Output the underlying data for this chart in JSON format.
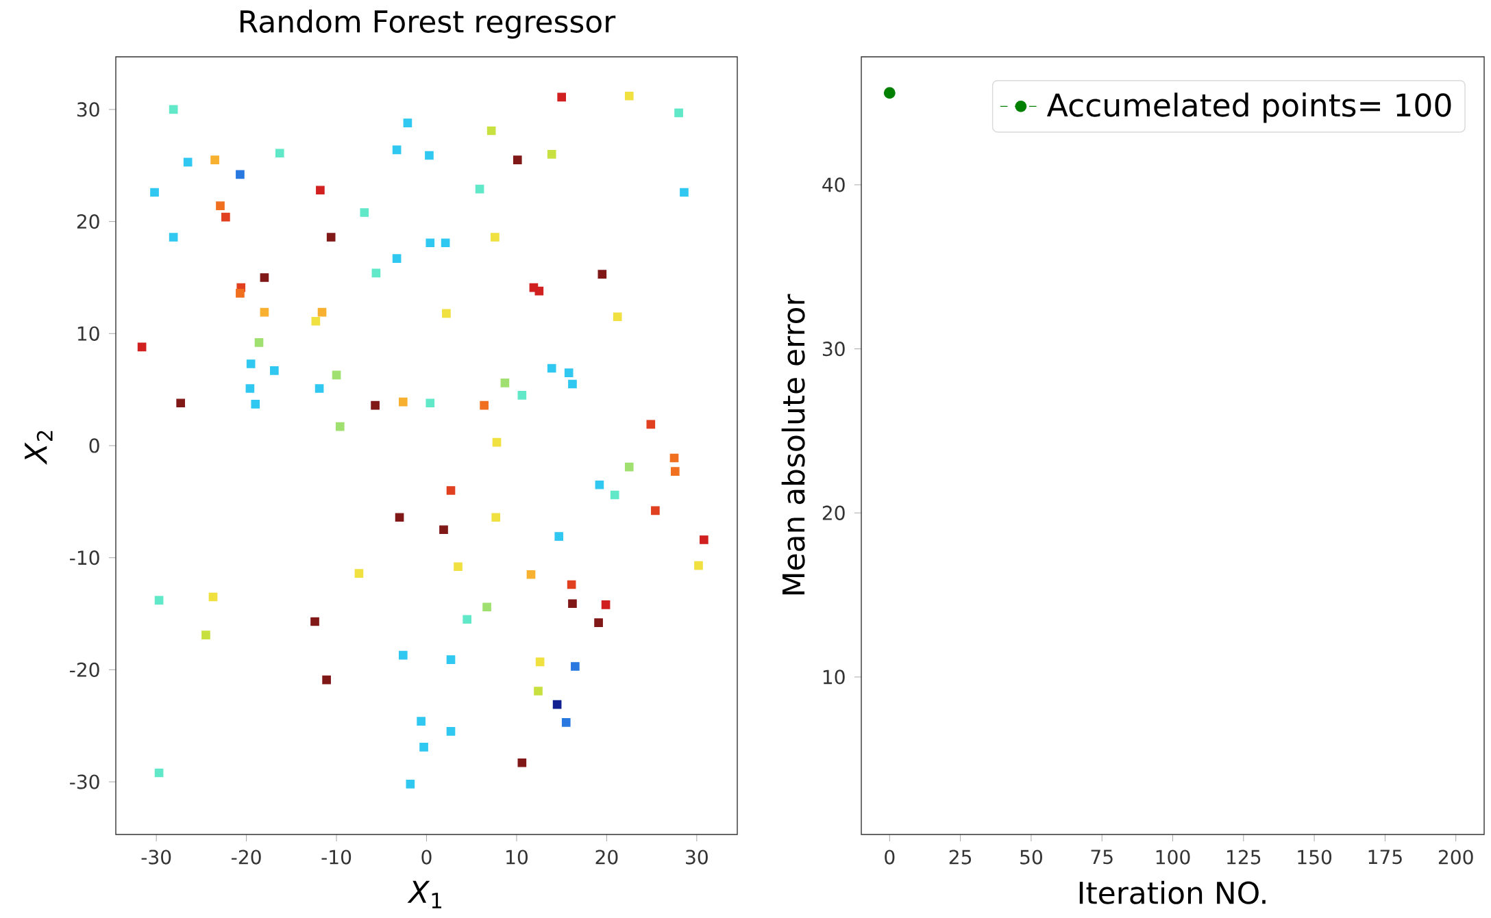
{
  "chart_data": [
    {
      "type": "scatter",
      "title": "Random Forest regressor",
      "xlabel": "*X*$_{1}$",
      "ylabel": "*X*$_{2}$",
      "marker": "square",
      "xlim": [
        -34.5,
        34.5
      ],
      "ylim": [
        -34.7,
        34.7
      ],
      "xticks": [
        -30,
        -20,
        -10,
        0,
        10,
        20,
        30
      ],
      "yticks": [
        -30,
        -20,
        -10,
        0,
        10,
        20,
        30
      ],
      "x": [
        -28.1,
        15.0,
        22.5,
        28.0,
        -2.1,
        7.2,
        -16.3,
        -26.5,
        -23.5,
        -3.3,
        0.3,
        10.1,
        13.9,
        5.9,
        -20.7,
        -30.2,
        -11.8,
        28.6,
        -22.9,
        -22.3,
        -6.9,
        -28.1,
        -10.6,
        7.6,
        0.4,
        2.1,
        -3.3,
        -5.6,
        -18.0,
        19.5,
        -20.6,
        -20.7,
        11.9,
        12.5,
        -18.0,
        -11.6,
        -12.3,
        2.2,
        21.2,
        -18.6,
        -31.6,
        -19.5,
        -16.9,
        -10.0,
        13.9,
        15.8,
        16.2,
        -19.6,
        -11.9,
        8.7,
        10.6,
        -27.3,
        -19.0,
        -5.7,
        -2.6,
        0.4,
        6.4,
        -9.6,
        24.9,
        7.8,
        27.5,
        27.6,
        22.5,
        2.7,
        19.2,
        20.9,
        25.4,
        -3.0,
        7.7,
        1.9,
        30.8,
        14.7,
        30.2,
        3.5,
        -7.5,
        11.6,
        16.1,
        16.2,
        19.9,
        -23.7,
        -29.7,
        6.7,
        4.5,
        -12.4,
        19.1,
        -24.5,
        -2.6,
        2.7,
        12.6,
        16.5,
        -11.1,
        12.4,
        14.5,
        15.5,
        -0.6,
        2.7,
        -0.3,
        10.6,
        -29.7,
        -1.8
      ],
      "values": [
        30.0,
        31.1,
        31.2,
        29.7,
        28.8,
        28.1,
        26.1,
        25.3,
        25.5,
        26.4,
        25.9,
        25.5,
        26.0,
        22.9,
        24.2,
        22.6,
        22.8,
        22.6,
        21.4,
        20.4,
        20.8,
        18.6,
        18.6,
        18.6,
        18.1,
        18.1,
        16.7,
        15.4,
        15.0,
        15.3,
        14.1,
        13.6,
        14.1,
        13.8,
        11.9,
        11.9,
        11.1,
        11.8,
        11.5,
        9.2,
        8.8,
        7.3,
        6.7,
        6.3,
        6.9,
        6.5,
        5.5,
        5.1,
        5.1,
        5.6,
        4.5,
        3.8,
        3.7,
        3.6,
        3.9,
        3.8,
        3.6,
        1.7,
        1.9,
        0.3,
        -1.1,
        -2.3,
        -1.9,
        -4.0,
        -3.5,
        -4.4,
        -5.8,
        -6.4,
        -6.4,
        -7.5,
        -8.4,
        -8.1,
        -10.7,
        -10.8,
        -11.4,
        -11.5,
        -12.4,
        -14.1,
        -14.2,
        -13.5,
        -13.8,
        -14.4,
        -15.5,
        -15.7,
        -15.8,
        -16.9,
        -18.7,
        -19.1,
        -19.3,
        -19.7,
        -20.9,
        -21.9,
        -23.1,
        -24.7,
        -24.6,
        -25.5,
        -26.9,
        -28.3,
        -29.2,
        -30.2
      ],
      "colors": [
        "#60e8c8",
        "#d02020",
        "#f0e040",
        "#60e8c8",
        "#30c8f0",
        "#c8e040",
        "#60e8c8",
        "#30c8f0",
        "#f8b030",
        "#30c8f0",
        "#30c8f0",
        "#801818",
        "#c8e040",
        "#60e8c8",
        "#2878e0",
        "#30c8f0",
        "#d02020",
        "#30c8f0",
        "#f07020",
        "#e04020",
        "#60e8c8",
        "#30c8f0",
        "#801818",
        "#f0e040",
        "#30c8f0",
        "#30c8f0",
        "#30c8f0",
        "#60e8c8",
        "#801818",
        "#801818",
        "#e04020",
        "#f07020",
        "#d02020",
        "#d02020",
        "#f8b030",
        "#f8b030",
        "#f0e040",
        "#f0e040",
        "#f0e040",
        "#a0e070",
        "#d02020",
        "#30c8f0",
        "#30c8f0",
        "#a0e070",
        "#30c8f0",
        "#30c8f0",
        "#30c8f0",
        "#30c8f0",
        "#30c8f0",
        "#a0e070",
        "#60e8c8",
        "#801818",
        "#30c8f0",
        "#801818",
        "#f8b030",
        "#60e8c8",
        "#f07020",
        "#a0e070",
        "#e04020",
        "#f0e040",
        "#f07020",
        "#f07020",
        "#a0e070",
        "#e04020",
        "#30c8f0",
        "#60e8c8",
        "#e04020",
        "#801818",
        "#f0e040",
        "#801818",
        "#d02020",
        "#30c8f0",
        "#f0e040",
        "#f0e040",
        "#f0e040",
        "#f8b030",
        "#e04020",
        "#801818",
        "#d02020",
        "#f0e040",
        "#60e8c8",
        "#a0e070",
        "#60e8c8",
        "#801818",
        "#801818",
        "#c8e040",
        "#30c8f0",
        "#30c8f0",
        "#f0e040",
        "#2878e0",
        "#801818",
        "#c8e040",
        "#102090",
        "#2878e0",
        "#30c8f0",
        "#30c8f0",
        "#30c8f0",
        "#801818",
        "#60e8c8",
        "#30c8f0"
      ]
    },
    {
      "type": "line",
      "xlabel": "Iteration NO.",
      "ylabel": "Mean absolute error",
      "marker": "circle",
      "line_style": "dashed",
      "legend": "top right",
      "xlim": [
        -10,
        210
      ],
      "ylim": [
        0.4,
        47.8
      ],
      "xticks": [
        0,
        25,
        50,
        75,
        100,
        125,
        150,
        175,
        200
      ],
      "yticks": [
        10,
        20,
        30,
        40
      ],
      "series": [
        {
          "name": "Accumelated points= 100",
          "color": "#008000",
          "x": [
            0
          ],
          "values": [
            45.6
          ]
        }
      ]
    }
  ]
}
